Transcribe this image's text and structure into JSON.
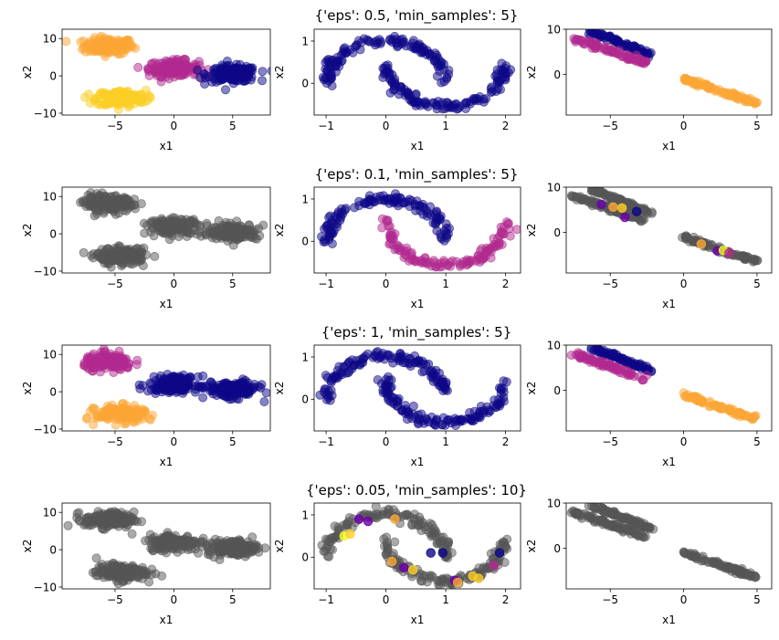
{
  "figure": {
    "row_titles": [
      "{'eps': 0.5, 'min_samples': 5}",
      "{'eps': 0.1, 'min_samples': 5}",
      "{'eps': 1, 'min_samples': 5}",
      "{'eps': 0.05, 'min_samples': 10}"
    ],
    "xlabel": "x1",
    "ylabel": "x2"
  },
  "colors": {
    "noise": "#555555",
    "navy": "#0d0887",
    "purple": "#6a00a8",
    "magenta": "#b12a90",
    "orange": "#fca636",
    "yellow": "#f0f921",
    "gold": "#fcce25"
  },
  "chart_data": [
    {
      "type": "scatter",
      "row": 0,
      "col": 0,
      "dataset": "blobs",
      "xlim": [
        -9.5,
        8.2
      ],
      "ylim": [
        -10.5,
        12.5
      ],
      "xticks": [
        -5,
        0,
        5
      ],
      "yticks": [
        -10,
        0,
        10
      ],
      "clusters": [
        {
          "cx": -5.5,
          "cy": 8,
          "color": "orange"
        },
        {
          "cx": 0,
          "cy": 2,
          "color": "magenta"
        },
        {
          "cx": 5,
          "cy": 0.5,
          "color": "navy"
        },
        {
          "cx": -4.5,
          "cy": -6,
          "color": "gold"
        }
      ]
    },
    {
      "type": "scatter",
      "row": 0,
      "col": 1,
      "dataset": "moons",
      "xlim": [
        -1.2,
        2.25
      ],
      "ylim": [
        -0.75,
        1.28
      ],
      "xticks": [
        -1,
        0,
        1,
        2
      ],
      "yticks": [
        0,
        1
      ],
      "clusters": [
        {
          "shape": "upper",
          "color": "navy"
        },
        {
          "shape": "lower",
          "color": "navy"
        }
      ]
    },
    {
      "type": "scatter",
      "row": 0,
      "col": 2,
      "dataset": "lines",
      "xlim": [
        -8,
        6
      ],
      "ylim": [
        -9,
        10
      ],
      "xticks": [
        -5,
        0,
        5
      ],
      "yticks": [
        0,
        10
      ],
      "clusters": [
        {
          "seg": "upper",
          "color": "navy"
        },
        {
          "seg": "middle",
          "color": "magenta"
        },
        {
          "seg": "lower",
          "color": "orange"
        }
      ]
    },
    {
      "type": "scatter",
      "row": 1,
      "col": 0,
      "dataset": "blobs",
      "xlim": [
        -9.5,
        8.2
      ],
      "ylim": [
        -10.5,
        12.5
      ],
      "xticks": [
        -5,
        0,
        5
      ],
      "yticks": [
        -10,
        0,
        10
      ],
      "clusters": [
        {
          "cx": -5.5,
          "cy": 8,
          "color": "noise"
        },
        {
          "cx": 0,
          "cy": 2,
          "color": "noise"
        },
        {
          "cx": 5,
          "cy": 0.5,
          "color": "noise"
        },
        {
          "cx": -4.5,
          "cy": -6,
          "color": "noise"
        }
      ]
    },
    {
      "type": "scatter",
      "row": 1,
      "col": 1,
      "dataset": "moons",
      "xlim": [
        -1.2,
        2.25
      ],
      "ylim": [
        -0.75,
        1.28
      ],
      "xticks": [
        -1,
        0,
        1,
        2
      ],
      "yticks": [
        0,
        1
      ],
      "clusters": [
        {
          "shape": "upper",
          "color": "navy"
        },
        {
          "shape": "lower",
          "color": "magenta"
        }
      ]
    },
    {
      "type": "scatter",
      "row": 1,
      "col": 2,
      "dataset": "lines",
      "xlim": [
        -8,
        6
      ],
      "ylim": [
        -9,
        10
      ],
      "xticks": [
        -5,
        0,
        5
      ],
      "yticks": [
        0,
        10
      ],
      "clusters": [
        {
          "seg": "upper",
          "color": "noise"
        },
        {
          "seg": "middle",
          "color": "noise"
        },
        {
          "seg": "lower",
          "color": "noise"
        }
      ],
      "highlights": [
        {
          "x": -5.6,
          "y": 6.2,
          "color": "purple"
        },
        {
          "x": -4.8,
          "y": 5.6,
          "color": "orange"
        },
        {
          "x": -4.2,
          "y": 5.4,
          "color": "gold"
        },
        {
          "x": -4.0,
          "y": 3.3,
          "color": "purple"
        },
        {
          "x": -3.2,
          "y": 4.6,
          "color": "navy"
        },
        {
          "x": 1.2,
          "y": -2.6,
          "color": "orange"
        },
        {
          "x": 2.3,
          "y": -4.1,
          "color": "purple"
        },
        {
          "x": 2.7,
          "y": -4.0,
          "color": "yellow"
        },
        {
          "x": 3.1,
          "y": -4.6,
          "color": "magenta"
        }
      ]
    },
    {
      "type": "scatter",
      "row": 2,
      "col": 0,
      "dataset": "blobs",
      "xlim": [
        -9.5,
        8.2
      ],
      "ylim": [
        -10.5,
        12.5
      ],
      "xticks": [
        -5,
        0,
        5
      ],
      "yticks": [
        -10,
        0,
        10
      ],
      "clusters": [
        {
          "cx": -5.5,
          "cy": 8,
          "color": "magenta"
        },
        {
          "cx": 0,
          "cy": 2,
          "color": "navy"
        },
        {
          "cx": 5,
          "cy": 0.5,
          "color": "navy"
        },
        {
          "cx": -4.5,
          "cy": -6,
          "color": "orange"
        }
      ]
    },
    {
      "type": "scatter",
      "row": 2,
      "col": 1,
      "dataset": "moons",
      "xlim": [
        -1.2,
        2.25
      ],
      "ylim": [
        -0.75,
        1.28
      ],
      "xticks": [
        -1,
        0,
        1,
        2
      ],
      "yticks": [
        0,
        1
      ],
      "clusters": [
        {
          "shape": "upper",
          "color": "navy"
        },
        {
          "shape": "lower",
          "color": "navy"
        }
      ]
    },
    {
      "type": "scatter",
      "row": 2,
      "col": 2,
      "dataset": "lines",
      "xlim": [
        -8,
        6
      ],
      "ylim": [
        -9,
        10
      ],
      "xticks": [
        -5,
        0,
        5
      ],
      "yticks": [
        0,
        10
      ],
      "clusters": [
        {
          "seg": "upper",
          "color": "navy"
        },
        {
          "seg": "middle",
          "color": "magenta"
        },
        {
          "seg": "lower",
          "color": "orange"
        }
      ]
    },
    {
      "type": "scatter",
      "row": 3,
      "col": 0,
      "dataset": "blobs",
      "xlim": [
        -9.5,
        8.2
      ],
      "ylim": [
        -10.5,
        12.5
      ],
      "xticks": [
        -5,
        0,
        5
      ],
      "yticks": [
        -10,
        0,
        10
      ],
      "clusters": [
        {
          "cx": -5.5,
          "cy": 8,
          "color": "noise"
        },
        {
          "cx": 0,
          "cy": 2,
          "color": "noise"
        },
        {
          "cx": 5,
          "cy": 0.5,
          "color": "noise"
        },
        {
          "cx": -4.5,
          "cy": -6,
          "color": "noise"
        }
      ]
    },
    {
      "type": "scatter",
      "row": 3,
      "col": 1,
      "dataset": "moons",
      "xlim": [
        -1.2,
        2.25
      ],
      "ylim": [
        -0.75,
        1.28
      ],
      "xticks": [
        -1,
        0,
        1,
        2
      ],
      "yticks": [
        0,
        1
      ],
      "clusters": [
        {
          "shape": "upper",
          "color": "noise"
        },
        {
          "shape": "lower",
          "color": "noise"
        }
      ],
      "highlights": [
        {
          "x": -0.7,
          "y": 0.5,
          "color": "yellow"
        },
        {
          "x": -0.6,
          "y": 0.55,
          "color": "gold"
        },
        {
          "x": -0.45,
          "y": 0.9,
          "color": "purple"
        },
        {
          "x": -0.3,
          "y": 0.85,
          "color": "purple"
        },
        {
          "x": 0.15,
          "y": 0.9,
          "color": "orange"
        },
        {
          "x": 0.1,
          "y": -0.1,
          "color": "orange"
        },
        {
          "x": 0.3,
          "y": -0.25,
          "color": "purple"
        },
        {
          "x": 0.45,
          "y": -0.3,
          "color": "gold"
        },
        {
          "x": 0.75,
          "y": 0.1,
          "color": "navy"
        },
        {
          "x": 0.95,
          "y": 0.1,
          "color": "navy"
        },
        {
          "x": 1.15,
          "y": -0.55,
          "color": "purple"
        },
        {
          "x": 1.2,
          "y": -0.6,
          "color": "orange"
        },
        {
          "x": 1.45,
          "y": -0.45,
          "color": "gold"
        },
        {
          "x": 1.55,
          "y": -0.5,
          "color": "gold"
        },
        {
          "x": 1.8,
          "y": -0.2,
          "color": "magenta"
        },
        {
          "x": 1.9,
          "y": 0.1,
          "color": "navy"
        }
      ]
    },
    {
      "type": "scatter",
      "row": 3,
      "col": 2,
      "dataset": "lines",
      "xlim": [
        -8,
        6
      ],
      "ylim": [
        -9,
        10
      ],
      "xticks": [
        -5,
        0,
        5
      ],
      "yticks": [
        0,
        10
      ],
      "clusters": [
        {
          "seg": "upper",
          "color": "noise"
        },
        {
          "seg": "middle",
          "color": "noise"
        },
        {
          "seg": "lower",
          "color": "noise"
        }
      ]
    }
  ]
}
